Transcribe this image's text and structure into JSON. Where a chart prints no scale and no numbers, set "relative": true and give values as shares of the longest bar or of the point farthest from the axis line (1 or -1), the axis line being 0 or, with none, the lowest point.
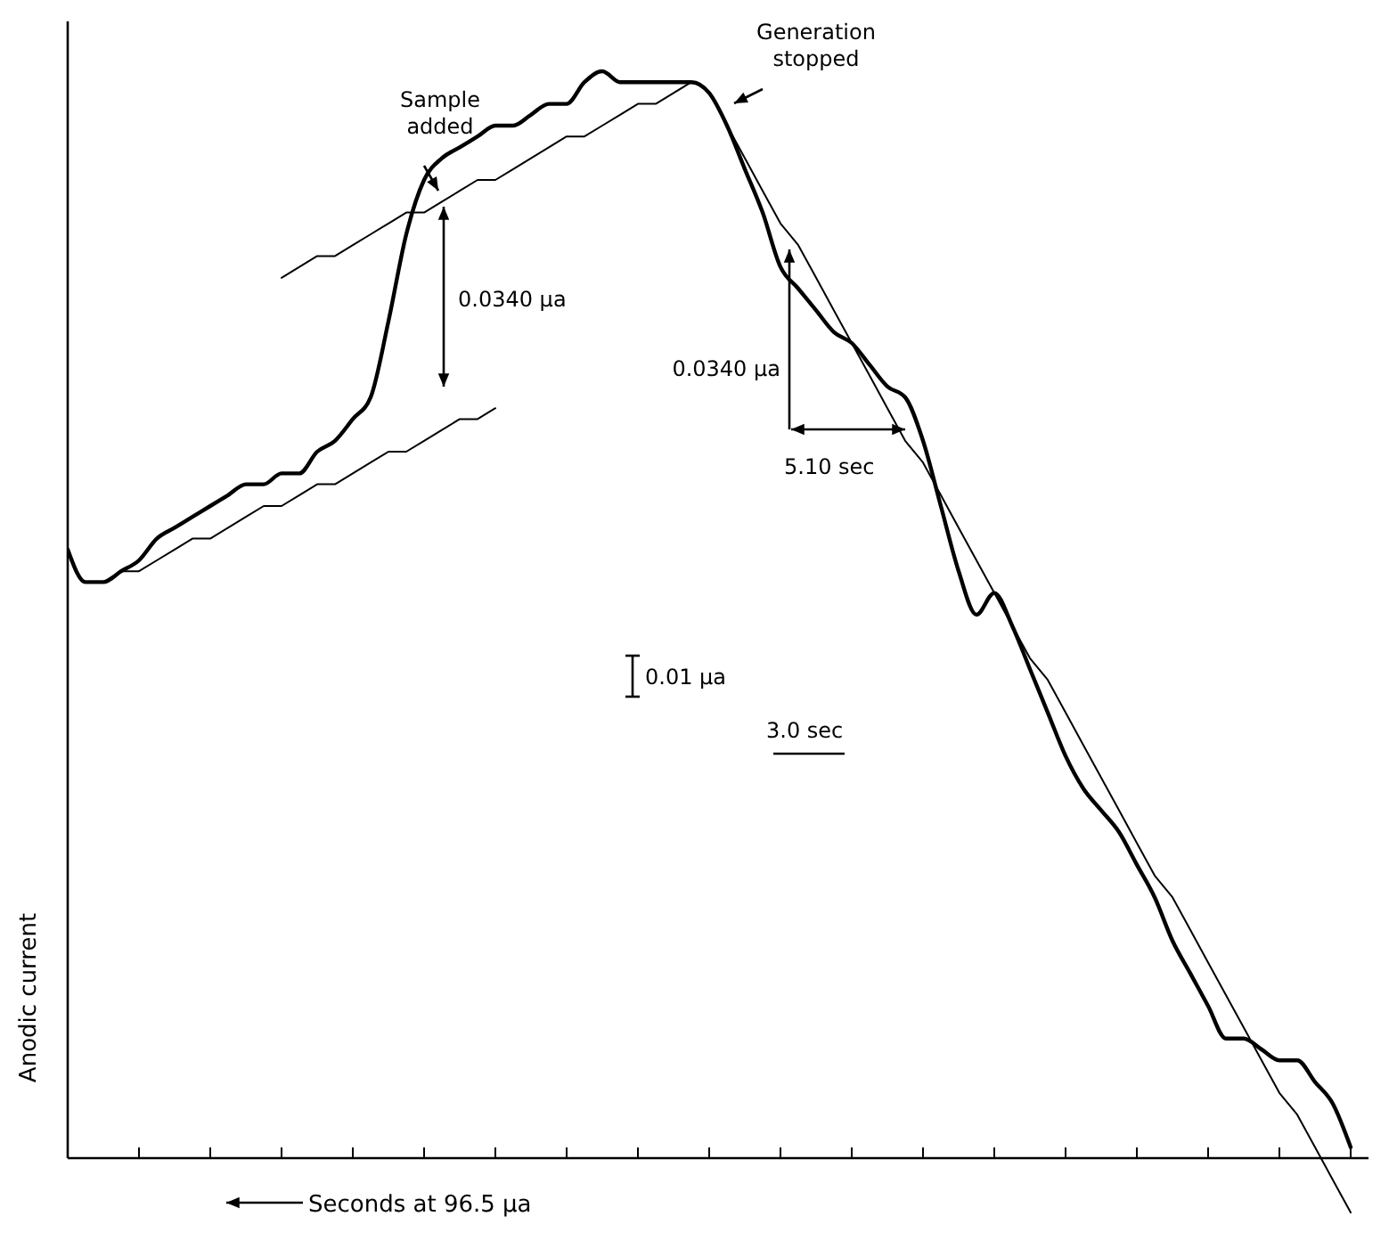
{
  "chart_data": {
    "type": "line",
    "relative": true,
    "xlabel": "Seconds at 96.5 μa",
    "ylabel": "Anodic current",
    "annotations": [
      "Sample added",
      "Generation stopped",
      "0.0340 μa",
      "0.0340 μa",
      "5.10 sec",
      "0.01 μa",
      "3.0 sec"
    ],
    "categories": [
      null,
      null,
      null,
      null,
      null,
      null,
      null,
      null,
      null,
      null,
      null,
      null,
      null,
      null,
      null,
      null,
      null,
      null,
      null,
      null,
      null,
      null,
      null,
      null,
      null,
      null,
      null,
      null,
      null,
      null,
      null,
      null,
      null,
      null,
      null,
      null,
      null,
      null,
      null,
      null,
      null,
      null,
      null,
      null,
      null,
      null,
      null,
      null,
      null,
      null,
      null,
      null,
      null,
      null,
      null,
      null,
      null,
      null,
      null,
      null,
      null,
      null,
      null,
      null,
      null,
      null,
      null,
      null,
      null,
      null,
      null,
      null,
      null
    ],
    "series": [
      {
        "color": "#000000",
        "values": [
          0.56,
          0.53,
          0.53,
          0.54,
          0.55,
          0.57,
          0.58,
          0.59,
          0.6,
          0.61,
          0.62,
          0.62,
          0.63,
          0.63,
          0.65,
          0.66,
          0.68,
          0.7,
          0.77,
          0.85,
          0.9,
          0.92,
          0.93,
          0.94,
          0.95,
          0.95,
          0.96,
          0.97,
          0.97,
          0.99,
          1,
          0.99,
          0.99,
          0.99,
          0.99,
          0.99,
          0.98,
          0.95,
          0.91,
          0.87,
          0.82,
          0.8,
          0.78,
          0.76,
          0.75,
          0.73,
          0.71,
          0.7,
          0.66,
          0.6,
          0.54,
          0.5,
          0.52,
          0.49,
          0.45,
          0.41,
          0.37,
          0.34,
          0.32,
          0.3,
          0.27,
          0.24,
          0.2,
          0.17,
          0.14,
          0.11,
          0.11,
          0.1,
          0.09,
          0.09,
          0.07,
          0.05,
          0.01
        ]
      },
      {
        "type": "line",
        "color": "#000000",
        "values": [
          null,
          null,
          0.53,
          0.54,
          0.54,
          0.55,
          0.56,
          0.57,
          0.57,
          0.58,
          0.59,
          0.6,
          0.6,
          0.61,
          0.62,
          0.62,
          0.63,
          0.64,
          0.65,
          0.65,
          0.66,
          0.67,
          0.68,
          0.68,
          0.69,
          null,
          null,
          null,
          null,
          null,
          null,
          null,
          null,
          null,
          null,
          null,
          null,
          null,
          null,
          null,
          null,
          null,
          null,
          null,
          null,
          null,
          null,
          null,
          null,
          null,
          null,
          null,
          null,
          null,
          null,
          null,
          null,
          null,
          null,
          null,
          null,
          null,
          null,
          null,
          null,
          null,
          null,
          null,
          null,
          null,
          null,
          null,
          null
        ]
      },
      {
        "type": "line",
        "color": "#000000",
        "values": [
          null,
          null,
          null,
          null,
          null,
          null,
          null,
          null,
          null,
          null,
          null,
          null,
          0.81,
          0.82,
          0.83,
          0.83,
          0.84,
          0.85,
          0.86,
          0.87,
          0.87,
          0.88,
          0.89,
          0.9,
          0.9,
          0.91,
          0.92,
          0.93,
          0.94,
          0.94,
          0.95,
          0.96,
          0.97,
          0.97,
          0.98,
          0.99,
          null,
          null,
          null,
          null,
          null,
          null,
          null,
          null,
          null,
          null,
          null,
          null,
          null,
          null,
          null,
          null,
          null,
          null,
          null,
          null,
          null,
          null,
          null,
          null,
          null,
          null,
          null,
          null,
          null,
          null,
          null,
          null,
          null,
          null,
          null,
          null,
          null
        ]
      },
      {
        "type": "line",
        "color": "#000000",
        "values": [
          null,
          null,
          null,
          null,
          null,
          null,
          null,
          null,
          null,
          null,
          null,
          null,
          null,
          null,
          null,
          null,
          null,
          null,
          null,
          null,
          null,
          null,
          null,
          null,
          null,
          null,
          null,
          null,
          null,
          null,
          null,
          null,
          null,
          null,
          null,
          null,
          null,
          0.95,
          0.92,
          0.89,
          0.86,
          0.84,
          0.81,
          0.78,
          0.75,
          0.72,
          0.69,
          0.66,
          0.64,
          0.61,
          0.58,
          0.55,
          0.52,
          0.49,
          0.46,
          0.44,
          0.41,
          0.38,
          0.35,
          0.32,
          0.29,
          0.26,
          0.24,
          0.21,
          0.18,
          0.15,
          0.12,
          0.09,
          0.06,
          0.04,
          0.01,
          -0.02,
          -0.05
        ]
      }
    ]
  }
}
